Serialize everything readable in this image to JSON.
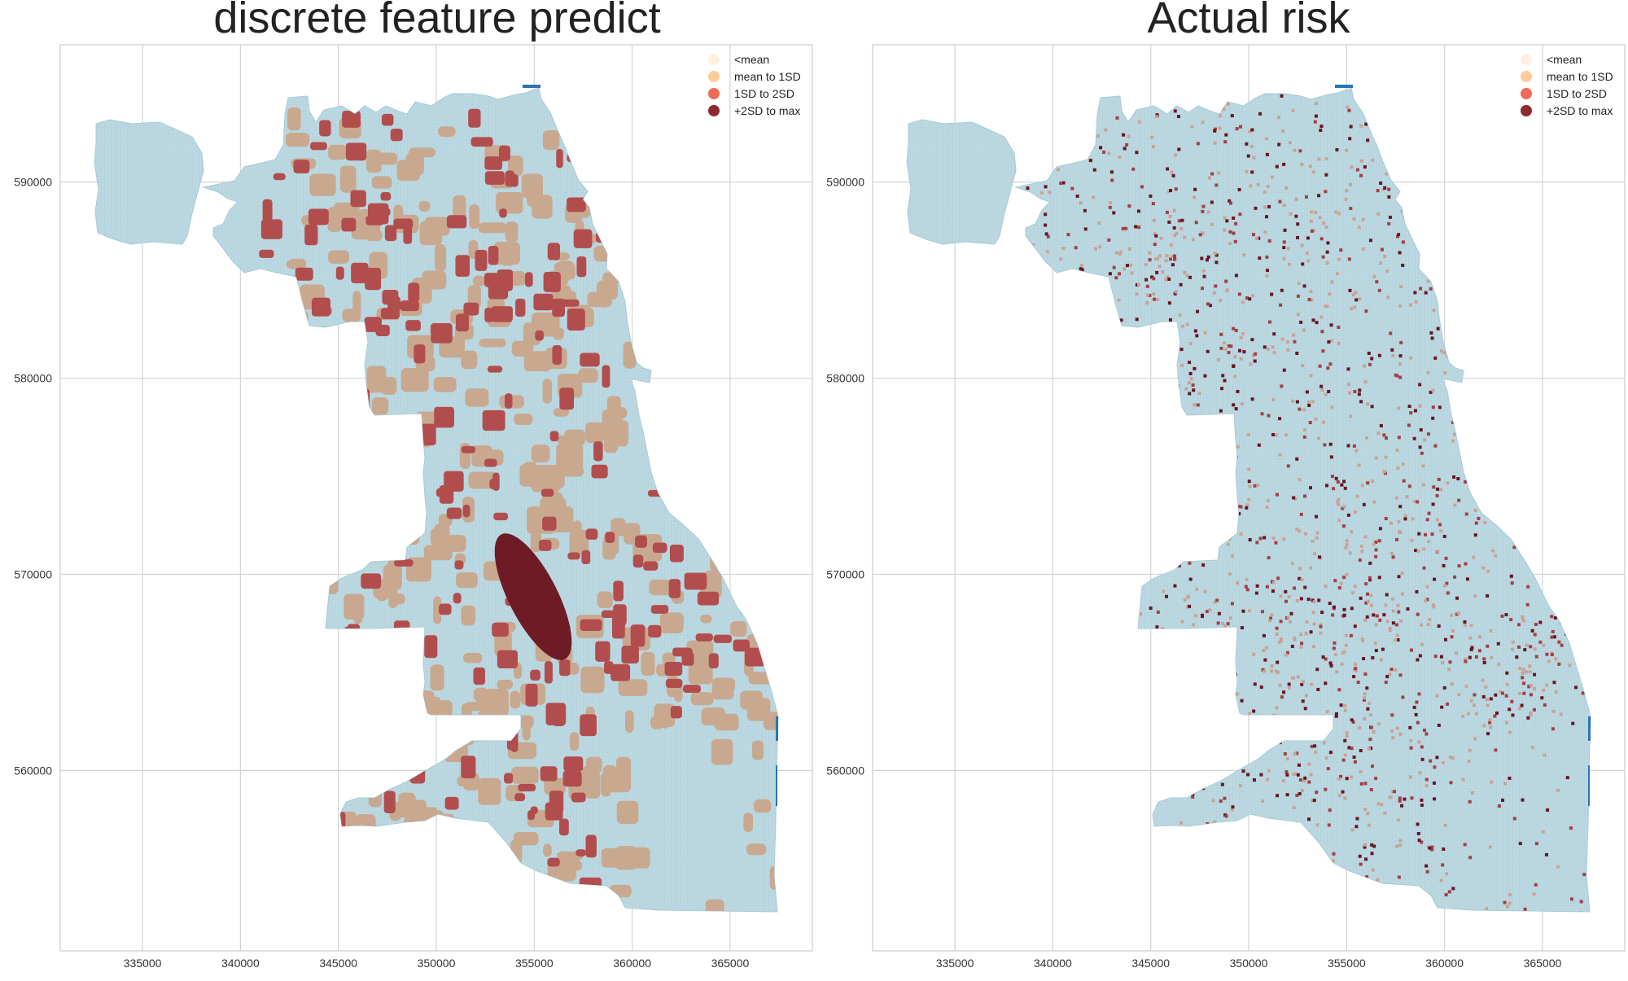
{
  "figure": {
    "panels": [
      {
        "id": "left",
        "title": "discrete feature predict",
        "xticks": [
          "335000",
          "340000",
          "345000",
          "350000",
          "355000",
          "360000",
          "365000"
        ],
        "yticks": [
          "590000",
          "580000",
          "570000",
          "560000"
        ],
        "legend": [
          "<mean",
          "mean to 1SD",
          "1SD to 2SD",
          "+2SD to max"
        ]
      },
      {
        "id": "right",
        "title": "Actual risk",
        "xticks": [
          "335000",
          "340000",
          "345000",
          "350000",
          "355000",
          "360000",
          "365000"
        ],
        "yticks": [
          "590000",
          "580000",
          "570000",
          "560000"
        ],
        "legend": [
          "<mean",
          "mean to 1SD",
          "1SD to 2SD",
          "+2SD to max"
        ]
      }
    ],
    "legend_colors": [
      "#fdf0e0",
      "#fdcc9a",
      "#ee6b58",
      "#8c2a2e"
    ],
    "base_color": "#bcd9e2",
    "axis": {
      "xlim": [
        330800,
        369200
      ],
      "ylim": [
        550800,
        597000
      ],
      "xtick_values": [
        335000,
        340000,
        345000,
        350000,
        355000,
        360000,
        365000
      ],
      "ytick_values": [
        590000,
        580000,
        570000,
        560000
      ],
      "grid": true,
      "legend_position": "top-right"
    },
    "colors": {
      "predict_mid": "#c8a990",
      "predict_high": "#b24d4e",
      "predict_max": "#6e1b26",
      "actual_mid": "#c9a394",
      "actual_high": "#a33f44",
      "actual_max": "#6a1423",
      "water": "#2b74b3"
    }
  }
}
